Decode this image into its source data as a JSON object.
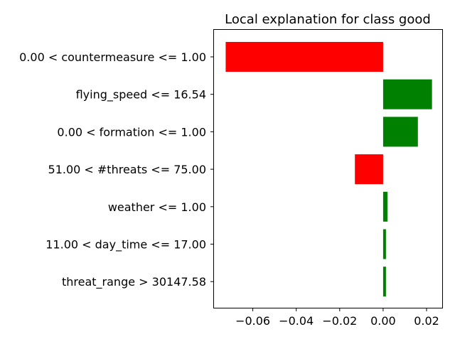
{
  "chart_data": {
    "type": "bar",
    "orientation": "horizontal",
    "title": "Local explanation for class good",
    "xlabel": "",
    "ylabel": "",
    "xlim": [
      -0.0782,
      0.0272
    ],
    "xticks": [
      -0.06,
      -0.04,
      -0.02,
      0.0,
      0.02
    ],
    "xtick_labels": [
      "−0.06",
      "−0.04",
      "−0.02",
      "0.00",
      "0.02"
    ],
    "grid": false,
    "categories": [
      "0.00 < countermeasure <= 1.00",
      "flying_speed <= 16.54",
      "0.00 < formation <= 1.00",
      "51.00 < #threats <= 75.00",
      "weather <= 1.00",
      "11.00 < day_time <= 17.00",
      "threat_range > 30147.58"
    ],
    "values": [
      -0.0725,
      0.0225,
      0.016,
      -0.013,
      0.002,
      0.0013,
      0.0013
    ],
    "colors": {
      "positive": "#008000",
      "negative": "#ff0000"
    }
  }
}
